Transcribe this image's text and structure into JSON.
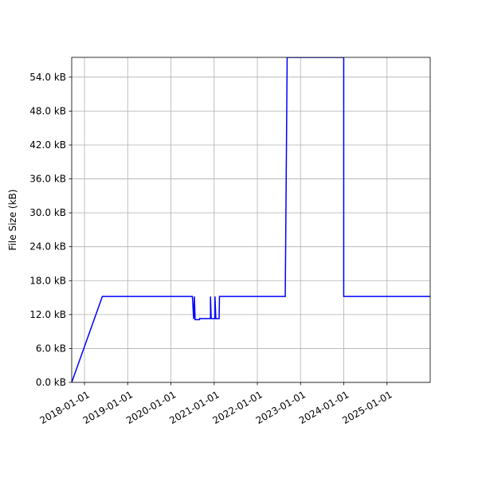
{
  "chart_data": {
    "type": "line",
    "title": "",
    "xlabel": "",
    "ylabel": "File Size (kB)",
    "grid": true,
    "xlim": [
      "2017-09-15",
      "2026-01-01"
    ],
    "ylim": [
      0,
      57.5
    ],
    "x_ticks": [
      "2018-01-01",
      "2019-01-01",
      "2020-01-01",
      "2021-01-01",
      "2022-01-01",
      "2023-01-01",
      "2024-01-01",
      "2025-01-01"
    ],
    "y_ticks": [
      {
        "value": 0,
        "label": "0.0 kB"
      },
      {
        "value": 6,
        "label": "6.0 kB"
      },
      {
        "value": 12,
        "label": "12.0 kB"
      },
      {
        "value": 18,
        "label": "18.0 kB"
      },
      {
        "value": 24,
        "label": "24.0 kB"
      },
      {
        "value": 30,
        "label": "30.0 kB"
      },
      {
        "value": 36,
        "label": "36.0 kB"
      },
      {
        "value": 42,
        "label": "42.0 kB"
      },
      {
        "value": 48,
        "label": "48.0 kB"
      },
      {
        "value": 54,
        "label": "54.0 kB"
      }
    ],
    "series": [
      {
        "color": "#0000ff",
        "points": [
          {
            "x": "2017-09-15",
            "y": 0
          },
          {
            "x": "2018-06-01",
            "y": 15.2
          },
          {
            "x": "2020-07-01",
            "y": 15.2
          },
          {
            "x": "2020-07-12",
            "y": 11.2
          },
          {
            "x": "2020-07-18",
            "y": 15.2
          },
          {
            "x": "2020-07-24",
            "y": 11.1
          },
          {
            "x": "2020-08-30",
            "y": 11.1
          },
          {
            "x": "2020-09-01",
            "y": 11.3
          },
          {
            "x": "2020-12-01",
            "y": 11.3
          },
          {
            "x": "2020-12-01",
            "y": 15.2
          },
          {
            "x": "2020-12-07",
            "y": 11.3
          },
          {
            "x": "2021-01-08",
            "y": 11.3
          },
          {
            "x": "2021-01-08",
            "y": 15.2
          },
          {
            "x": "2021-01-15",
            "y": 11.3
          },
          {
            "x": "2021-02-12",
            "y": 11.3
          },
          {
            "x": "2021-02-15",
            "y": 15.2
          },
          {
            "x": "2022-08-25",
            "y": 15.2
          },
          {
            "x": "2022-09-10",
            "y": 57.5
          },
          {
            "x": "2024-01-01",
            "y": 57.5
          },
          {
            "x": "2024-01-01",
            "y": 15.2
          },
          {
            "x": "2026-01-01",
            "y": 15.2
          }
        ]
      }
    ]
  }
}
